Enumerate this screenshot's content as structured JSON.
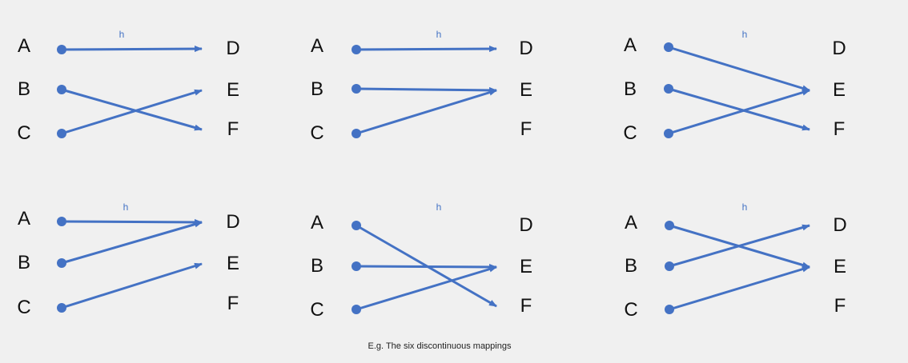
{
  "colors": {
    "arrow": "#4472c4",
    "text": "#111111",
    "background": "#f0f0f0"
  },
  "caption": "E.g. The six discontinuous mappings",
  "panels": [
    {
      "map_label": "h",
      "domain": [
        "A",
        "B",
        "C"
      ],
      "codomain": [
        "D",
        "E",
        "F"
      ],
      "mapping": {
        "A": "D",
        "B": "F",
        "C": "E"
      }
    },
    {
      "map_label": "h",
      "domain": [
        "A",
        "B",
        "C"
      ],
      "codomain": [
        "D",
        "E",
        "F"
      ],
      "mapping": {
        "A": "D",
        "B": "E",
        "C": "E"
      }
    },
    {
      "map_label": "h",
      "domain": [
        "A",
        "B",
        "C"
      ],
      "codomain": [
        "D",
        "E",
        "F"
      ],
      "mapping": {
        "A": "E",
        "B": "F",
        "C": "E"
      }
    },
    {
      "map_label": "h",
      "domain": [
        "A",
        "B",
        "C"
      ],
      "codomain": [
        "D",
        "E",
        "F"
      ],
      "mapping": {
        "A": "D",
        "B": "D",
        "C": "E"
      }
    },
    {
      "map_label": "h",
      "domain": [
        "A",
        "B",
        "C"
      ],
      "codomain": [
        "D",
        "E",
        "F"
      ],
      "mapping": {
        "A": "F",
        "B": "E",
        "C": "E"
      }
    },
    {
      "map_label": "h",
      "domain": [
        "A",
        "B",
        "C"
      ],
      "codomain": [
        "D",
        "E",
        "F"
      ],
      "mapping": {
        "A": "E",
        "B": "D",
        "C": "E"
      }
    }
  ]
}
